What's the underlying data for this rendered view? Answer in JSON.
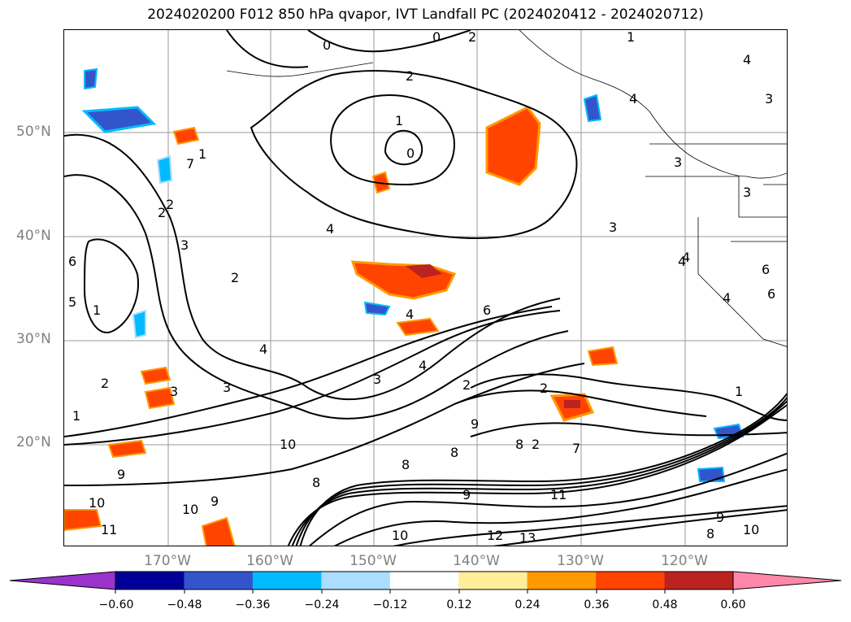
{
  "title": "2024020200 F012 850 hPa qvapor, IVT Landfall PC (2024020412 - 2024020712)",
  "axes": {
    "lat_labels": [
      "50°N",
      "40°N",
      "30°N",
      "20°N"
    ],
    "lon_labels": [
      "170°W",
      "160°W",
      "150°W",
      "140°W",
      "130°W",
      "120°W"
    ]
  },
  "colorbar": {
    "ticks": [
      "−0.60",
      "−0.48",
      "−0.36",
      "−0.24",
      "−0.12",
      "0.12",
      "0.24",
      "0.36",
      "0.48",
      "0.60"
    ],
    "colors": [
      "#9933cc",
      "#000099",
      "#3355cc",
      "#00bbff",
      "#aaddff",
      "#ffffff",
      "#ffee99",
      "#ff9900",
      "#ff4400",
      "#bb2222",
      "#ff88aa"
    ]
  },
  "contour_labels": [
    "0",
    "0",
    "1",
    "1",
    "2",
    "2",
    "2",
    "1",
    "0",
    "4",
    "4",
    "4",
    "3",
    "3",
    "3",
    "3",
    "2",
    "6",
    "5",
    "1",
    "2",
    "4",
    "4",
    "3",
    "4",
    "3",
    "2",
    "1",
    "6",
    "7",
    "4",
    "2",
    "2",
    "9",
    "8",
    "8",
    "9",
    "8",
    "10",
    "10",
    "9",
    "10",
    "11",
    "12",
    "13",
    "11",
    "10",
    "9",
    "8",
    "10",
    "8",
    "6",
    "6",
    "9",
    "4",
    "3",
    "1",
    "2",
    "4",
    "3",
    "7"
  ]
}
